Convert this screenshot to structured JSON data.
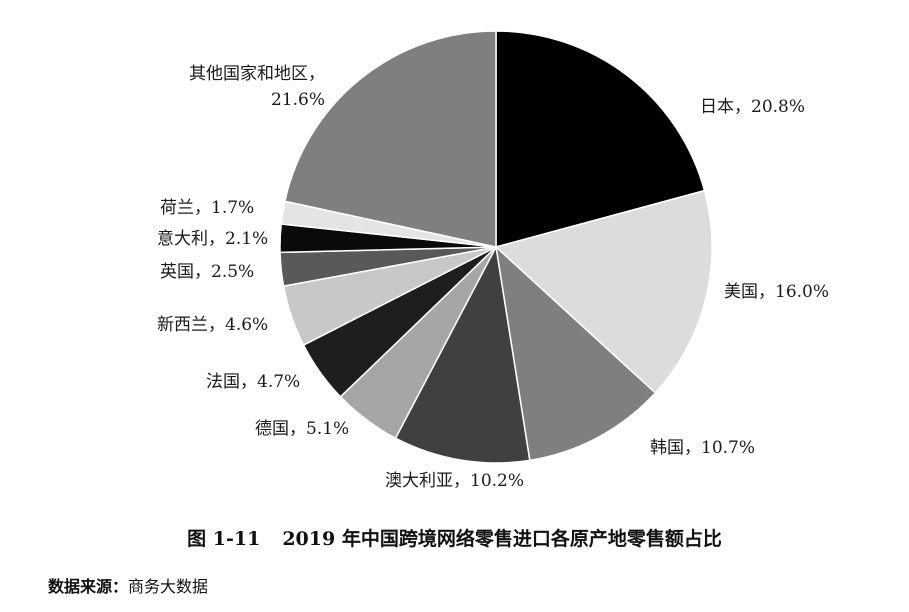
{
  "chart_data": {
    "type": "pie",
    "slices": [
      {
        "label": "日本，20.8%",
        "name": "日本",
        "value": 20.8,
        "color": "#000000"
      },
      {
        "label": "美国，16.0%",
        "name": "美国",
        "value": 16.0,
        "color": "#dcdcdc"
      },
      {
        "label": "韩国，10.7%",
        "name": "韩国",
        "value": 10.7,
        "color": "#7f7f7f"
      },
      {
        "label": "澳大利亚，10.2%",
        "name": "澳大利亚",
        "value": 10.2,
        "color": "#404040"
      },
      {
        "label": "德国，5.1%",
        "name": "德国",
        "value": 5.1,
        "color": "#a6a6a6"
      },
      {
        "label": "法国，4.7%",
        "name": "法国",
        "value": 4.7,
        "color": "#1e1e1e"
      },
      {
        "label": "新西兰，4.6%",
        "name": "新西兰",
        "value": 4.6,
        "color": "#c8c8c8"
      },
      {
        "label": "英国，2.5%",
        "name": "英国",
        "value": 2.5,
        "color": "#595959"
      },
      {
        "label": "意大利，2.1%",
        "name": "意大利",
        "value": 2.1,
        "color": "#0a0a0a"
      },
      {
        "label": "荷兰，1.7%",
        "name": "荷兰",
        "value": 1.7,
        "color": "#e4e4e4"
      },
      {
        "label": "其他国家和地区，\n21.6%",
        "name": "其他国家和地区",
        "value": 21.6,
        "color": "#7f7f7f"
      }
    ],
    "start_angle_deg": 0,
    "direction": "clockwise"
  },
  "caption": {
    "figure_number": "图 1-11",
    "title": "2019 年中国跨境网络零售进口各原产地零售额占比"
  },
  "source": {
    "label": "数据来源：",
    "text": "商务大数据"
  }
}
